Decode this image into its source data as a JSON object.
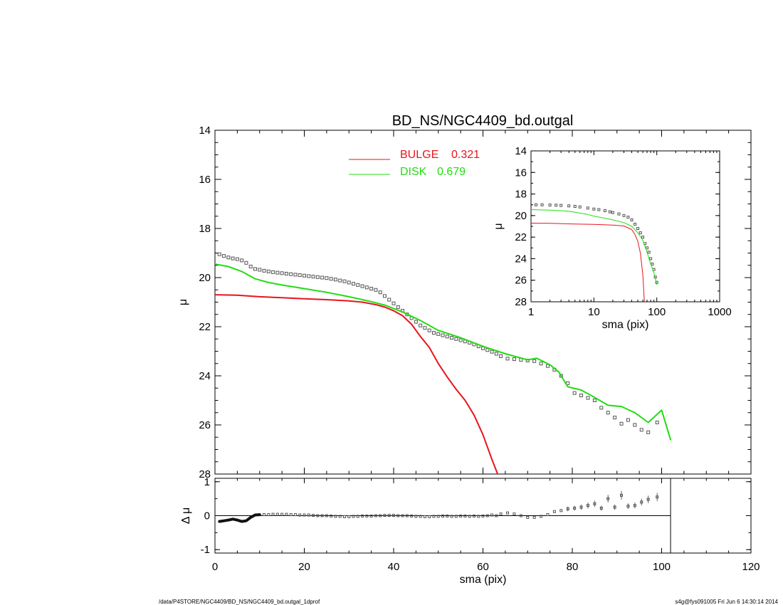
{
  "title": "BD_NS/NGC4409_bd.outgal",
  "footer_left": "/data/P4STORE/NGC4409/BD_NS/NGC4409_bd.outgal_1dprof",
  "footer_right": "s4g@fys091005  Fri Jun  6 14:30:14 2014",
  "colors": {
    "bulge": "#e8141c",
    "disk": "#22dd11",
    "data": "#555555",
    "axis": "#000000"
  },
  "legend": [
    {
      "name": "BULGE",
      "value": "0.321",
      "color": "#e8141c"
    },
    {
      "name": "DISK",
      "value": "0.679",
      "color": "#22dd11"
    }
  ],
  "chart_data": [
    {
      "id": "main",
      "type": "line",
      "ylabel": "μ",
      "xlabel": "",
      "xlim": [
        0,
        120
      ],
      "ylim": [
        28,
        14
      ],
      "y_inverted": true,
      "xticks": [
        0,
        20,
        40,
        60,
        80,
        100,
        120
      ],
      "yticks": [
        14,
        16,
        18,
        20,
        22,
        24,
        26,
        28
      ],
      "series": [
        {
          "name": "data",
          "style": "squares",
          "x": [
            1,
            2,
            3,
            4,
            5,
            6,
            7,
            8,
            9,
            10,
            11,
            12,
            13,
            14,
            15,
            16,
            17,
            18,
            19,
            20,
            21,
            22,
            23,
            24,
            25,
            26,
            27,
            28,
            29,
            30,
            31,
            32,
            33,
            34,
            35,
            36,
            37,
            38,
            39,
            40,
            41,
            42,
            43,
            44,
            45,
            46,
            47,
            48,
            49,
            50,
            51,
            52,
            53,
            54,
            55,
            56,
            57,
            58,
            59,
            60,
            61,
            62,
            63,
            64,
            65.5,
            67,
            68.5,
            70,
            71.5,
            73,
            74.5,
            76,
            77.5,
            79,
            80.5,
            82,
            83.5,
            85,
            86.5,
            88,
            89.5,
            91,
            92.5,
            94,
            95.5,
            97,
            99
          ],
          "y": [
            19.05,
            19.12,
            19.18,
            19.22,
            19.25,
            19.3,
            19.4,
            19.55,
            19.65,
            19.68,
            19.72,
            19.75,
            19.78,
            19.8,
            19.82,
            19.84,
            19.86,
            19.88,
            19.9,
            19.92,
            19.94,
            19.96,
            19.98,
            20.0,
            20.02,
            20.05,
            20.08,
            20.12,
            20.15,
            20.2,
            20.25,
            20.3,
            20.35,
            20.4,
            20.45,
            20.5,
            20.6,
            20.75,
            20.9,
            21.05,
            21.2,
            21.35,
            21.5,
            21.65,
            21.8,
            21.95,
            22.05,
            22.15,
            22.25,
            22.3,
            22.35,
            22.4,
            22.45,
            22.5,
            22.55,
            22.6,
            22.65,
            22.72,
            22.8,
            22.88,
            22.95,
            23.02,
            23.1,
            23.2,
            23.3,
            23.32,
            23.35,
            23.38,
            23.4,
            23.5,
            23.6,
            23.75,
            24.0,
            24.3,
            24.7,
            24.8,
            24.9,
            25.0,
            25.3,
            25.5,
            25.7,
            25.95,
            25.8,
            26.0,
            26.2,
            26.3,
            25.9
          ]
        },
        {
          "name": "BULGE",
          "style": "line",
          "color": "#e8141c",
          "x": [
            0,
            5,
            10,
            15,
            20,
            25,
            30,
            33,
            36,
            38,
            40,
            42,
            44,
            46,
            48,
            50,
            52,
            54,
            56,
            58,
            60,
            62,
            63.5
          ],
          "y": [
            20.7,
            20.72,
            20.78,
            20.82,
            20.86,
            20.9,
            20.95,
            21.0,
            21.1,
            21.2,
            21.35,
            21.55,
            21.9,
            22.4,
            22.85,
            23.5,
            24.05,
            24.55,
            25.0,
            25.6,
            26.4,
            27.4,
            28.1
          ]
        },
        {
          "name": "DISK",
          "style": "line",
          "color": "#22dd11",
          "x": [
            0,
            3,
            6,
            9,
            12,
            15,
            20,
            25,
            30,
            35,
            38,
            42,
            46,
            50,
            55,
            60,
            65,
            70,
            72,
            75,
            77,
            79,
            82,
            85,
            88,
            91,
            94,
            97,
            100,
            102
          ],
          "y": [
            19.45,
            19.55,
            19.75,
            20.05,
            20.2,
            20.3,
            20.45,
            20.6,
            20.78,
            20.98,
            21.12,
            21.4,
            21.75,
            22.15,
            22.45,
            22.8,
            23.1,
            23.35,
            23.28,
            23.55,
            23.85,
            24.45,
            24.58,
            24.88,
            25.2,
            25.25,
            25.5,
            25.9,
            25.4,
            26.6
          ]
        }
      ]
    },
    {
      "id": "inset",
      "type": "line",
      "ylabel": "μ",
      "xlabel": "sma (pix)",
      "x_scale": "log",
      "xlim": [
        1,
        1000
      ],
      "ylim": [
        28,
        14
      ],
      "y_inverted": true,
      "xticks": [
        1,
        10,
        100,
        1000
      ],
      "xtick_labels": [
        "1",
        "10",
        "100",
        "1000"
      ],
      "yticks": [
        14,
        16,
        18,
        20,
        22,
        24,
        26,
        28
      ],
      "series": [
        {
          "name": "data",
          "style": "squares",
          "x": [
            1.2,
            1.5,
            2,
            2.5,
            3,
            4,
            5,
            6,
            8,
            10,
            12,
            15,
            18,
            20,
            25,
            30,
            35,
            40,
            45,
            50,
            55,
            60,
            65,
            70,
            75,
            80,
            85,
            90,
            95,
            100
          ],
          "y": [
            19.0,
            19.0,
            19.02,
            19.04,
            19.06,
            19.1,
            19.15,
            19.2,
            19.3,
            19.4,
            19.45,
            19.55,
            19.65,
            19.72,
            19.85,
            20.0,
            20.15,
            20.4,
            20.8,
            21.2,
            21.6,
            22.0,
            22.6,
            23.0,
            23.4,
            24.0,
            24.5,
            25.0,
            25.7,
            26.2
          ]
        },
        {
          "name": "BULGE",
          "style": "line",
          "color": "#e8141c",
          "x": [
            1,
            2,
            5,
            10,
            20,
            30,
            40,
            45,
            50,
            55,
            60,
            63.5
          ],
          "y": [
            20.7,
            20.72,
            20.78,
            20.82,
            20.88,
            20.97,
            21.3,
            21.75,
            22.4,
            23.5,
            25.5,
            28.0
          ]
        },
        {
          "name": "DISK",
          "style": "line",
          "color": "#22dd11",
          "x": [
            1,
            2,
            4,
            8,
            10,
            15,
            20,
            30,
            40,
            50,
            60,
            70,
            80,
            90,
            100
          ],
          "y": [
            19.45,
            19.5,
            19.6,
            19.9,
            20.05,
            20.25,
            20.4,
            20.65,
            21.0,
            21.6,
            22.3,
            23.4,
            24.5,
            25.3,
            26.4
          ]
        }
      ]
    },
    {
      "id": "residual",
      "type": "scatter",
      "ylabel": "Δ μ",
      "xlabel": "sma (pix)",
      "xlim": [
        0,
        120
      ],
      "ylim": [
        -1.1,
        1.1
      ],
      "xticks": [
        0,
        20,
        40,
        60,
        80,
        100,
        120
      ],
      "yticks": [
        -1,
        0,
        1
      ],
      "zero_line_end": 102,
      "vline": 102,
      "series": [
        {
          "name": "residual_curve",
          "style": "thickline",
          "x": [
            1,
            2,
            3,
            4,
            5,
            6,
            7,
            8,
            9,
            10
          ],
          "y": [
            -0.17,
            -0.15,
            -0.13,
            -0.1,
            -0.13,
            -0.17,
            -0.15,
            -0.05,
            0.02,
            0.03
          ]
        },
        {
          "name": "residuals",
          "style": "squares",
          "x": [
            11,
            12,
            13,
            14,
            15,
            16,
            17,
            18,
            19,
            20,
            21,
            22,
            23,
            24,
            25,
            26,
            27,
            28,
            29,
            30,
            31,
            32,
            33,
            34,
            35,
            36,
            37,
            38,
            39,
            40,
            41,
            42,
            43,
            44,
            45,
            46,
            47,
            48,
            49,
            50,
            51,
            52,
            53,
            54,
            55,
            56,
            57,
            58,
            59,
            60,
            61,
            62,
            63,
            64,
            65.5,
            67,
            68.5,
            70,
            71.5,
            73,
            74.5,
            76,
            77.5,
            79,
            80.5,
            82,
            83.5,
            85,
            86.5,
            88,
            89.5,
            91,
            92.5,
            94,
            95.5,
            97,
            99
          ],
          "y": [
            0.03,
            0.03,
            0.04,
            0.04,
            0.04,
            0.04,
            0.03,
            0.03,
            0.02,
            0.02,
            0.02,
            0.01,
            0.0,
            0.0,
            0.0,
            -0.01,
            -0.02,
            -0.02,
            -0.03,
            -0.03,
            -0.02,
            -0.02,
            -0.01,
            -0.01,
            -0.01,
            0.0,
            0.0,
            0.01,
            0.01,
            0.01,
            0.0,
            0.0,
            0.0,
            -0.01,
            -0.02,
            -0.02,
            -0.03,
            -0.03,
            -0.02,
            -0.02,
            -0.01,
            -0.01,
            -0.02,
            -0.02,
            -0.01,
            -0.01,
            -0.02,
            -0.01,
            -0.02,
            -0.01,
            0.0,
            0.02,
            0.0,
            0.05,
            0.08,
            0.05,
            0.0,
            -0.05,
            -0.05,
            -0.02,
            0.03,
            0.12,
            0.15,
            0.2,
            0.22,
            0.25,
            0.3,
            0.35,
            0.22,
            0.5,
            0.25,
            0.6,
            0.28,
            0.3,
            0.4,
            0.48,
            0.55
          ]
        }
      ]
    }
  ]
}
